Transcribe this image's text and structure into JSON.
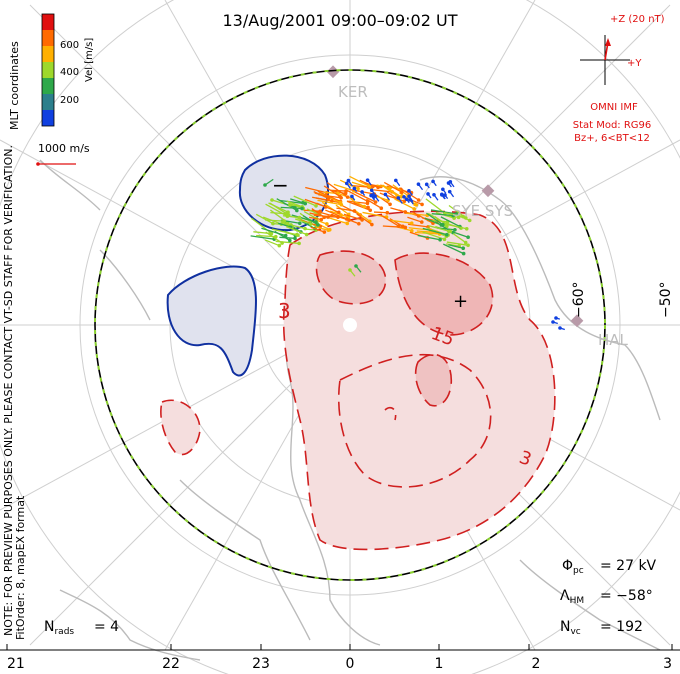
{
  "title": "13/Aug/2001 09:00–09:02 UT",
  "side_note": "MLT coordinates",
  "preview_note": "NOTE: FOR PREVIEW PURPOSES ONLY. PLEASE CONTACT VT-SD STAFF FOR VERIFICATION.",
  "fit_note": "FitOrder: 8, mapEX format",
  "colorbar": {
    "label": "Vel [m/s]",
    "ticks": [
      "600",
      "400",
      "200"
    ],
    "colors": [
      "#e01010",
      "#ff6a00",
      "#ffb000",
      "#9ed82b",
      "#2ea84a",
      "#2c7f8c",
      "#1040e0"
    ]
  },
  "vector_scale": "1000 m/s",
  "imf": {
    "z_label": "+Z (20 nT)",
    "y_label": "+Y",
    "source": "OMNI IMF",
    "model": "Stat Mod: RG96",
    "condition": "Bz+, 6<BT<12"
  },
  "stations": [
    "KER",
    "SYE SYS",
    "HAL"
  ],
  "lat_labels": [
    "−60°",
    "−50°"
  ],
  "mlt_labels": [
    "21",
    "22",
    "23",
    "0",
    "1",
    "2",
    "3"
  ],
  "contour_labels": [
    "3",
    "15",
    "3",
    "−",
    "+"
  ],
  "stats": {
    "phi_pc": "= 27 kV",
    "lambda_hm": "= −58°",
    "n_vc": "= 192",
    "n_rads": "= 4"
  }
}
